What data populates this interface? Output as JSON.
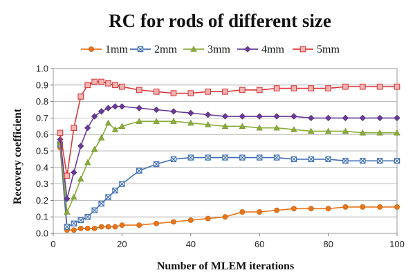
{
  "chart_data": {
    "type": "line",
    "title": "RC for rods of different size",
    "xlabel": "Number of MLEM iterations",
    "ylabel": "Recovery coefficient",
    "xlim": [
      0,
      100
    ],
    "ylim": [
      0,
      1.0
    ],
    "xticks": [
      0,
      20,
      40,
      60,
      80,
      100
    ],
    "yticks": [
      0.0,
      0.1,
      0.2,
      0.3,
      0.4,
      0.5,
      0.6,
      0.7,
      0.8,
      0.9,
      1.0
    ],
    "ytick_labels": [
      "0.0",
      "0.1",
      "0.2",
      "0.3",
      "0.4",
      "0.5",
      "0.6",
      "0.7",
      "0.8",
      "0.9",
      "1.0"
    ],
    "grid": "horizontal",
    "legend_position": "top",
    "x": [
      2,
      4,
      6,
      8,
      10,
      12,
      14,
      16,
      18,
      20,
      25,
      30,
      35,
      40,
      45,
      50,
      55,
      60,
      65,
      70,
      75,
      80,
      85,
      90,
      95,
      100
    ],
    "series": [
      {
        "name": "1mm",
        "color": "#e8751a",
        "marker": "circle",
        "values": [
          0.52,
          0.02,
          0.02,
          0.03,
          0.03,
          0.03,
          0.04,
          0.04,
          0.04,
          0.05,
          0.05,
          0.06,
          0.07,
          0.08,
          0.09,
          0.1,
          0.13,
          0.13,
          0.14,
          0.15,
          0.15,
          0.15,
          0.16,
          0.16,
          0.16,
          0.16
        ]
      },
      {
        "name": "2mm",
        "color": "#3f6fb6",
        "marker": "x-square",
        "values": [
          0.54,
          0.04,
          0.06,
          0.08,
          0.1,
          0.14,
          0.18,
          0.22,
          0.26,
          0.3,
          0.38,
          0.42,
          0.45,
          0.46,
          0.46,
          0.46,
          0.46,
          0.46,
          0.46,
          0.45,
          0.45,
          0.45,
          0.44,
          0.44,
          0.44,
          0.44
        ]
      },
      {
        "name": "3mm",
        "color": "#8aad3a",
        "marker": "triangle",
        "values": [
          0.55,
          0.13,
          0.22,
          0.33,
          0.43,
          0.51,
          0.58,
          0.67,
          0.63,
          0.65,
          0.68,
          0.68,
          0.68,
          0.67,
          0.66,
          0.65,
          0.65,
          0.64,
          0.64,
          0.63,
          0.62,
          0.62,
          0.62,
          0.61,
          0.61,
          0.61
        ]
      },
      {
        "name": "4mm",
        "color": "#6a3a96",
        "marker": "diamond",
        "values": [
          0.57,
          0.21,
          0.37,
          0.53,
          0.64,
          0.71,
          0.74,
          0.76,
          0.77,
          0.77,
          0.76,
          0.75,
          0.74,
          0.73,
          0.72,
          0.71,
          0.71,
          0.71,
          0.71,
          0.71,
          0.7,
          0.7,
          0.7,
          0.7,
          0.7,
          0.7
        ]
      },
      {
        "name": "5mm",
        "color": "#d93a3a",
        "marker": "square",
        "values": [
          0.61,
          0.35,
          0.64,
          0.83,
          0.9,
          0.92,
          0.92,
          0.91,
          0.9,
          0.89,
          0.87,
          0.86,
          0.85,
          0.85,
          0.86,
          0.86,
          0.87,
          0.87,
          0.88,
          0.88,
          0.88,
          0.88,
          0.89,
          0.89,
          0.89,
          0.89
        ]
      }
    ]
  }
}
